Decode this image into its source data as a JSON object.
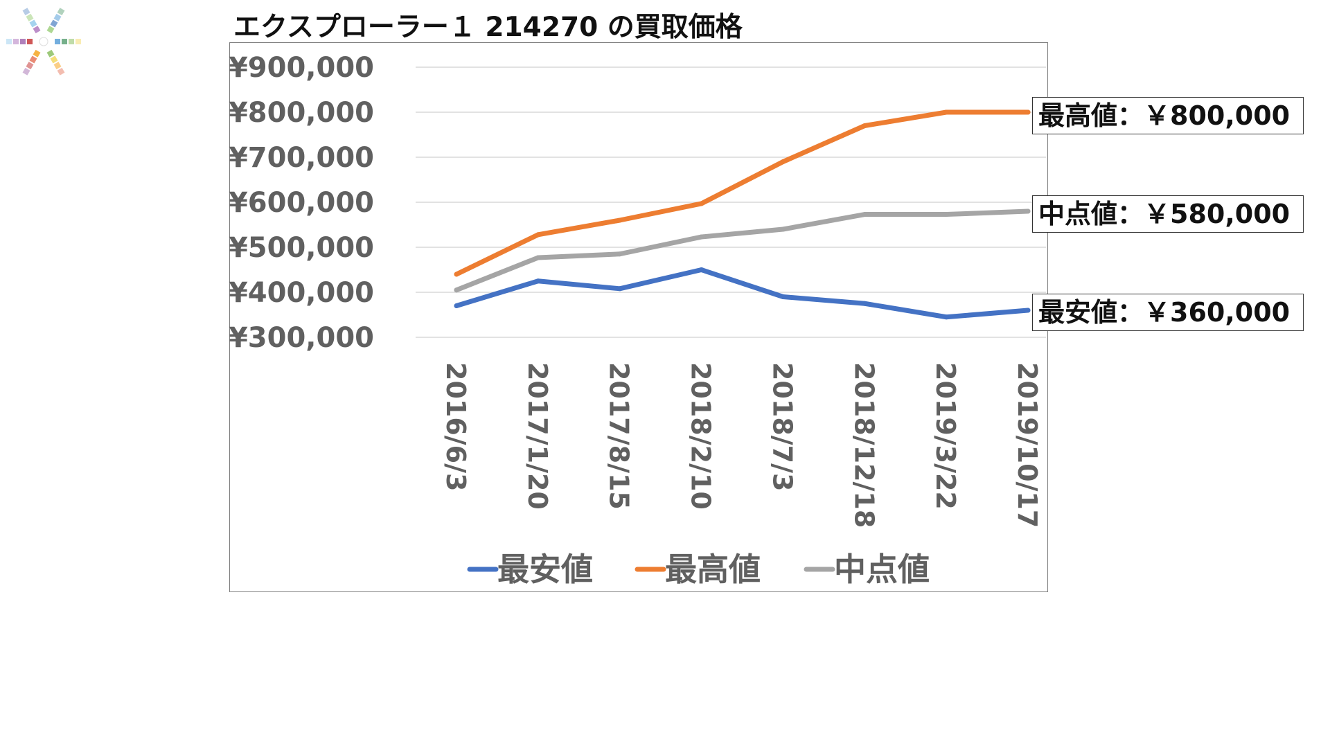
{
  "title": "エクスプローラー１ 214270 の買取価格",
  "chart_data": {
    "type": "line",
    "categories": [
      "2016/6/3",
      "2017/1/20",
      "2017/8/15",
      "2018/2/10",
      "2018/7/3",
      "2018/12/18",
      "2019/3/22",
      "2019/10/17"
    ],
    "series": [
      {
        "name": "最安値",
        "color": "#4472c4",
        "values": [
          370000,
          425000,
          408000,
          450000,
          390000,
          375000,
          345000,
          360000
        ]
      },
      {
        "name": "最高値",
        "color": "#ed7d31",
        "values": [
          440000,
          528000,
          560000,
          597000,
          690000,
          770000,
          800000,
          800000
        ]
      },
      {
        "name": "中点値",
        "color": "#a5a5a5",
        "values": [
          405000,
          477000,
          485000,
          523000,
          540000,
          573000,
          573000,
          580000
        ]
      }
    ],
    "y_ticks": [
      "¥300,000",
      "¥400,000",
      "¥500,000",
      "¥600,000",
      "¥700,000",
      "¥800,000",
      "¥900,000"
    ],
    "ylim": [
      300000,
      900000
    ],
    "grid": true,
    "legend": "bottom"
  },
  "callouts": {
    "max": "最高値：￥800,000",
    "mid": "中点値：￥580,000",
    "min": "最安値：￥360,000"
  },
  "logo": {
    "colors": [
      "#4a7fc1",
      "#5aa0d8",
      "#3c8f5a",
      "#8cc063",
      "#f0d040",
      "#f5a623",
      "#e05a3a",
      "#c73a3a",
      "#8e4a9e",
      "#b07ac0",
      "#7fc0e8",
      "#a0d080"
    ]
  }
}
